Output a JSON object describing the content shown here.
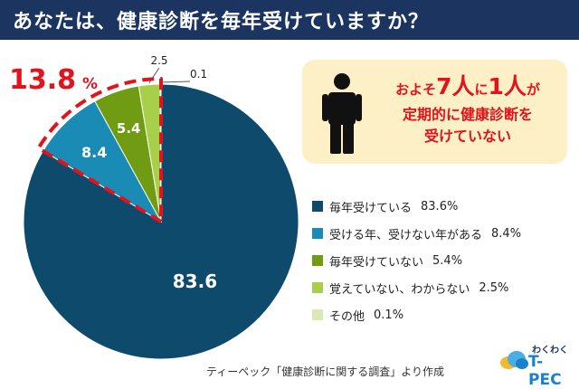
{
  "header": {
    "title": "あなたは、健康診断を毎年受けていますか？"
  },
  "chart_data": {
    "type": "pie",
    "categories": [
      "毎年受けている",
      "受ける年、受けない年がある",
      "毎年受けていない",
      "覚えていない、わからない",
      "その他"
    ],
    "values": [
      83.6,
      8.4,
      5.4,
      2.5,
      0.1
    ],
    "slice_labels": [
      "83.6",
      "8.4",
      "5.4",
      "2.5",
      "0.1"
    ],
    "legend_pcts": [
      "83.6%",
      "8.4%",
      "5.4%",
      "2.5%",
      "0.1%"
    ],
    "colors": [
      "#0d4a6b",
      "#1a8bb5",
      "#6f9c12",
      "#a7cf4a",
      "#d9e8b4"
    ],
    "highlight": {
      "value": "13.8",
      "unit": "%",
      "color": "#e3121b"
    },
    "legend_placement": "right"
  },
  "callout": {
    "line1_a": "およそ",
    "line1_b": "7人",
    "line1_c": "に",
    "line1_d": "1人",
    "line1_e": "が",
    "line2": "定期的に健康診断を",
    "line3": "受けていない",
    "icon": "person-icon"
  },
  "source": "ティーペック「健康診断に関する調査」より作成",
  "logo": {
    "small": "わくわく",
    "main": "T-PEC"
  }
}
